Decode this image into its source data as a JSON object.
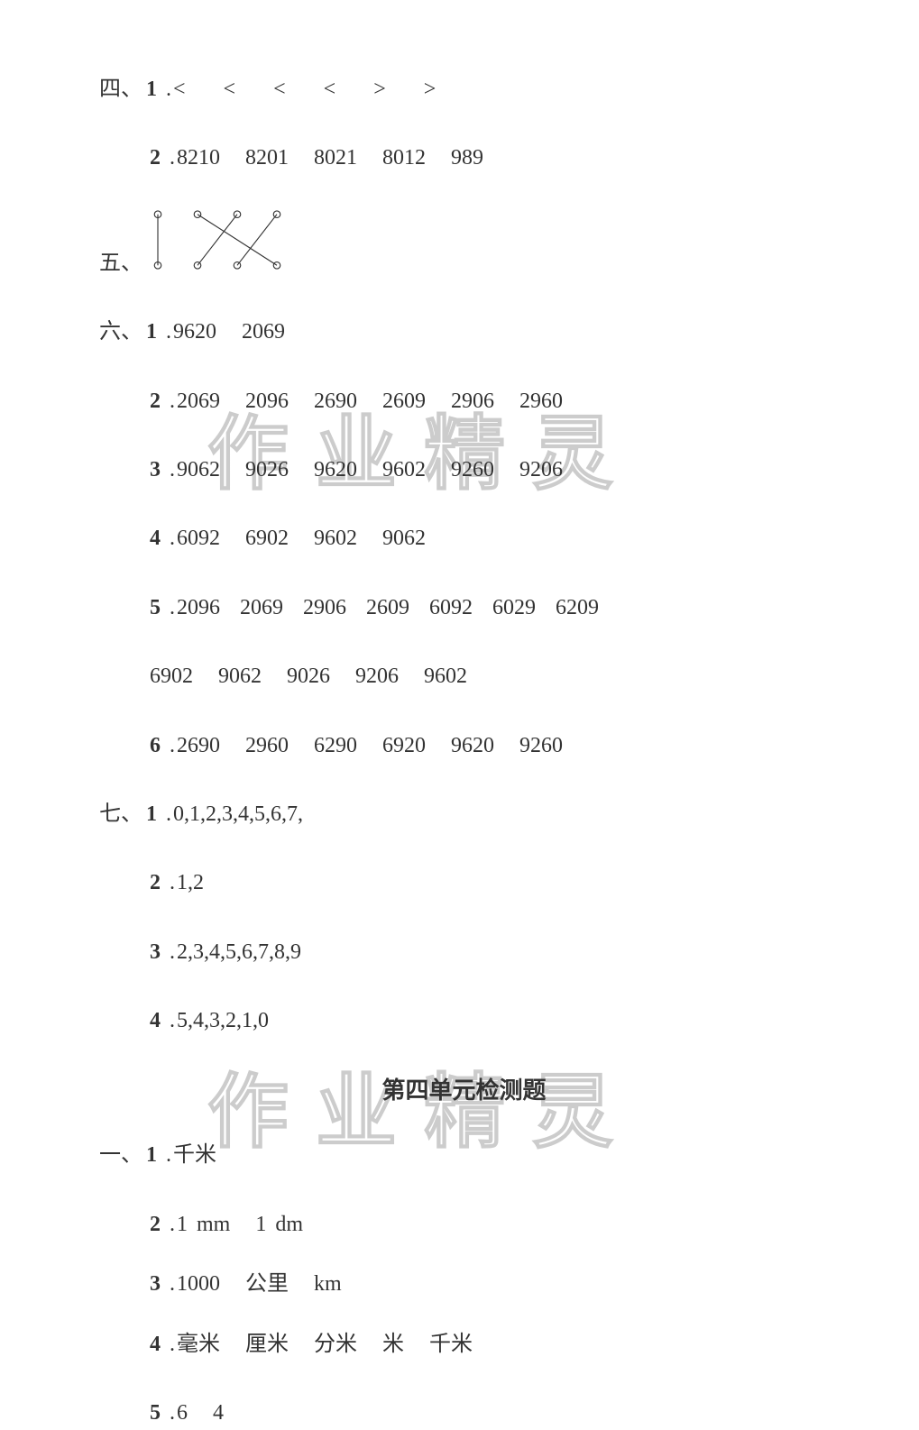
{
  "colors": {
    "background": "#ffffff",
    "text": "#333333",
    "watermark_stroke": "#cccccc",
    "svg_stroke": "#333333"
  },
  "typography": {
    "body_fontsize": 24,
    "title_fontsize": 26,
    "watermark_fontsize": 90,
    "line_spacing": 38
  },
  "watermark_text": "作业精灵",
  "section4": {
    "label": "四、",
    "item1": {
      "num": "1",
      "values": [
        "<",
        "<",
        "<",
        "<",
        ">",
        ">"
      ]
    },
    "item2": {
      "num": "2",
      "values": [
        "8210",
        "8201",
        "8021",
        "8012",
        "989"
      ]
    }
  },
  "section5": {
    "label": "五、",
    "matching": {
      "top_count": 4,
      "bottom_count": 4,
      "edges": [
        [
          0,
          0
        ],
        [
          1,
          3
        ],
        [
          2,
          1
        ],
        [
          3,
          2
        ]
      ],
      "width": 140,
      "height": 60,
      "circle_r": 4,
      "stroke": "#333333"
    }
  },
  "section6": {
    "label": "六、",
    "item1": {
      "num": "1",
      "values": [
        "9620",
        "2069"
      ]
    },
    "item2": {
      "num": "2",
      "values": [
        "2069",
        "2096",
        "2690",
        "2609",
        "2906",
        "2960"
      ]
    },
    "item3": {
      "num": "3",
      "values": [
        "9062",
        "9026",
        "9620",
        "9602",
        "9260",
        "9206"
      ]
    },
    "item4": {
      "num": "4",
      "values": [
        "6092",
        "6902",
        "9602",
        "9062"
      ]
    },
    "item5": {
      "num": "5",
      "values_l1": [
        "2096",
        "2069",
        "2906",
        "2609",
        "6092",
        "6029",
        "6209"
      ],
      "values_l2": [
        "6902",
        "9062",
        "9026",
        "9206",
        "9602"
      ]
    },
    "item6": {
      "num": "6",
      "values": [
        "2690",
        "2960",
        "6290",
        "6920",
        "9620",
        "9260"
      ]
    }
  },
  "section7": {
    "label": "七、",
    "item1": {
      "num": "1",
      "text": "0,1,2,3,4,5,6,7,"
    },
    "item2": {
      "num": "2",
      "text": "1,2"
    },
    "item3": {
      "num": "3",
      "text": "2,3,4,5,6,7,8,9"
    },
    "item4": {
      "num": "4",
      "text": "5,4,3,2,1,0"
    }
  },
  "unit_title": "第四单元检测题",
  "sectionA": {
    "label": "一、",
    "item1": {
      "num": "1",
      "values": [
        "千米"
      ]
    },
    "item2": {
      "num": "2",
      "v1": "1",
      "v2": "mm",
      "v3": "1",
      "v4": "dm"
    },
    "item3": {
      "num": "3",
      "v1": "1000",
      "v2": "公里",
      "v3": "km"
    },
    "item4": {
      "num": "4",
      "values": [
        "毫米",
        "厘米",
        "分米",
        "米",
        "千米"
      ]
    },
    "item5": {
      "num": "5",
      "values": [
        "6",
        "4"
      ]
    }
  }
}
